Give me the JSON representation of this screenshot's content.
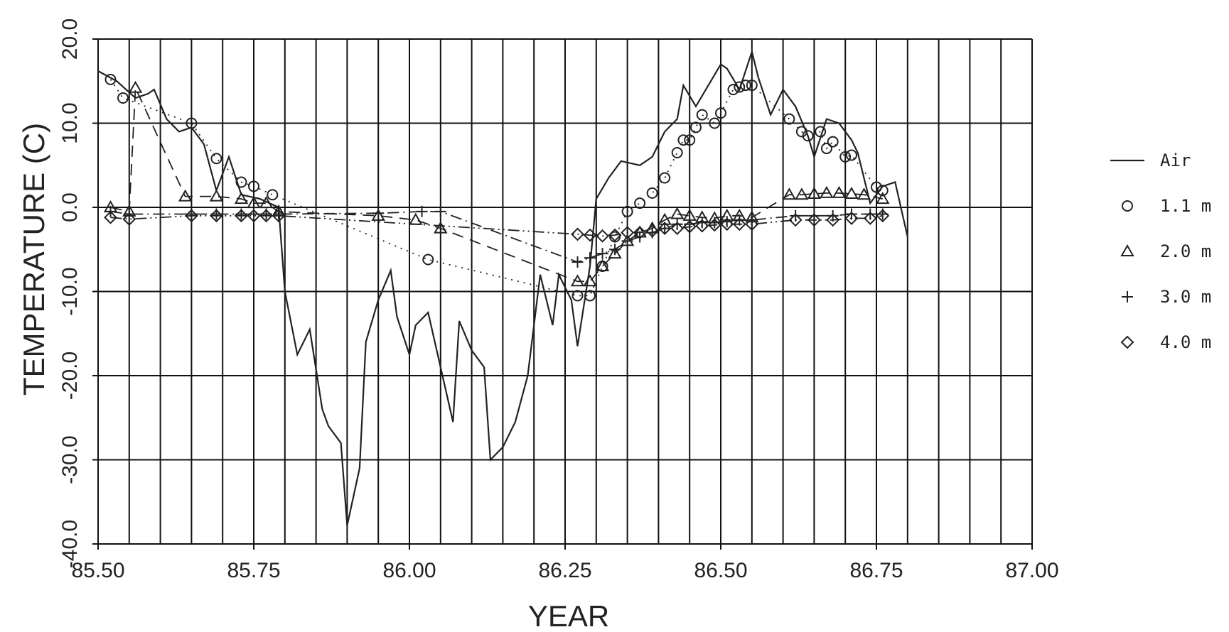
{
  "chart_data": {
    "type": "line",
    "xlabel": "YEAR",
    "ylabel": "TEMPERATURE (C)",
    "xlim": [
      85.5,
      87.0
    ],
    "ylim": [
      -40.0,
      20.0
    ],
    "x_ticks": [
      "85.50",
      "85.75",
      "86.00",
      "86.25",
      "86.50",
      "86.75",
      "87.00"
    ],
    "y_ticks": [
      "-40.0",
      "-30.0",
      "-20.0",
      "-10.0",
      "0.0",
      "10.0",
      "20.0"
    ],
    "grid": true,
    "legend_position": "right",
    "series": [
      {
        "name": "Air",
        "marker": "none",
        "line": "solid",
        "points": [
          [
            85.5,
            16.2
          ],
          [
            85.53,
            15.0
          ],
          [
            85.56,
            13.0
          ],
          [
            85.58,
            13.5
          ],
          [
            85.59,
            14.0
          ],
          [
            85.61,
            10.5
          ],
          [
            85.63,
            9.0
          ],
          [
            85.65,
            9.5
          ],
          [
            85.67,
            7.5
          ],
          [
            85.69,
            2.0
          ],
          [
            85.71,
            6.0
          ],
          [
            85.73,
            1.5
          ],
          [
            85.76,
            1.0
          ],
          [
            85.79,
            0.0
          ],
          [
            85.8,
            -10.0
          ],
          [
            85.82,
            -17.5
          ],
          [
            85.84,
            -14.5
          ],
          [
            85.86,
            -24.0
          ],
          [
            85.87,
            -26.0
          ],
          [
            85.89,
            -28.0
          ],
          [
            85.9,
            -37.8
          ],
          [
            85.92,
            -31.0
          ],
          [
            85.93,
            -16.0
          ],
          [
            85.95,
            -11.0
          ],
          [
            85.97,
            -7.5
          ],
          [
            85.98,
            -13.0
          ],
          [
            86.0,
            -17.5
          ],
          [
            86.01,
            -14.0
          ],
          [
            86.03,
            -12.5
          ],
          [
            86.05,
            -19.0
          ],
          [
            86.07,
            -25.5
          ],
          [
            86.08,
            -13.5
          ],
          [
            86.1,
            -17.0
          ],
          [
            86.12,
            -19.0
          ],
          [
            86.13,
            -30.0
          ],
          [
            86.15,
            -28.5
          ],
          [
            86.17,
            -25.5
          ],
          [
            86.19,
            -20.0
          ],
          [
            86.21,
            -8.0
          ],
          [
            86.23,
            -14.0
          ],
          [
            86.24,
            -8.0
          ],
          [
            86.26,
            -11.0
          ],
          [
            86.27,
            -16.5
          ],
          [
            86.29,
            -7.0
          ],
          [
            86.3,
            1.0
          ],
          [
            86.32,
            3.5
          ],
          [
            86.34,
            5.5
          ],
          [
            86.37,
            5.0
          ],
          [
            86.39,
            6.0
          ],
          [
            86.41,
            9.0
          ],
          [
            86.43,
            10.5
          ],
          [
            86.44,
            14.5
          ],
          [
            86.46,
            12.0
          ],
          [
            86.48,
            14.5
          ],
          [
            86.5,
            17.0
          ],
          [
            86.51,
            16.5
          ],
          [
            86.53,
            14.0
          ],
          [
            86.55,
            18.5
          ],
          [
            86.56,
            15.5
          ],
          [
            86.58,
            11.0
          ],
          [
            86.6,
            14.0
          ],
          [
            86.62,
            12.0
          ],
          [
            86.64,
            8.5
          ],
          [
            86.65,
            6.0
          ],
          [
            86.67,
            10.5
          ],
          [
            86.69,
            10.0
          ],
          [
            86.71,
            8.0
          ],
          [
            86.72,
            6.5
          ],
          [
            86.74,
            0.5
          ],
          [
            86.76,
            2.5
          ],
          [
            86.78,
            3.0
          ],
          [
            86.8,
            -3.5
          ]
        ]
      },
      {
        "name": "1.1 m",
        "marker": "circle",
        "line": "dotted",
        "points": [
          [
            85.52,
            15.2
          ],
          [
            85.54,
            13.0
          ],
          [
            85.65,
            10.0
          ],
          [
            85.69,
            5.8
          ],
          [
            85.73,
            3.0
          ],
          [
            85.75,
            2.5
          ],
          [
            85.78,
            1.5
          ],
          [
            86.03,
            -6.2
          ],
          [
            86.27,
            -10.5
          ],
          [
            86.29,
            -10.5
          ],
          [
            86.31,
            -7.0
          ],
          [
            86.33,
            -3.5
          ],
          [
            86.35,
            -0.5
          ],
          [
            86.37,
            0.5
          ],
          [
            86.39,
            1.7
          ],
          [
            86.41,
            3.5
          ],
          [
            86.43,
            6.5
          ],
          [
            86.44,
            8.0
          ],
          [
            86.45,
            8.0
          ],
          [
            86.46,
            9.5
          ],
          [
            86.47,
            11.0
          ],
          [
            86.49,
            10.0
          ],
          [
            86.5,
            11.2
          ],
          [
            86.52,
            14.0
          ],
          [
            86.53,
            14.3
          ],
          [
            86.54,
            14.5
          ],
          [
            86.55,
            14.5
          ],
          [
            86.61,
            10.5
          ],
          [
            86.63,
            9.0
          ],
          [
            86.64,
            8.5
          ],
          [
            86.66,
            9.0
          ],
          [
            86.67,
            7.0
          ],
          [
            86.68,
            7.8
          ],
          [
            86.7,
            6.0
          ],
          [
            86.71,
            6.2
          ],
          [
            86.75,
            2.4
          ],
          [
            86.76,
            2.0
          ]
        ]
      },
      {
        "name": "2.0 m",
        "marker": "triangle",
        "line": "dashed",
        "points": [
          [
            85.52,
            0.0
          ],
          [
            85.55,
            -0.5
          ],
          [
            85.56,
            14.2
          ],
          [
            85.64,
            1.3
          ],
          [
            85.69,
            1.3
          ],
          [
            85.73,
            1.0
          ],
          [
            85.75,
            0.5
          ],
          [
            85.77,
            0.5
          ],
          [
            85.79,
            -0.5
          ],
          [
            85.95,
            -1.0
          ],
          [
            86.01,
            -1.5
          ],
          [
            86.05,
            -2.5
          ],
          [
            86.27,
            -8.8
          ],
          [
            86.29,
            -8.8
          ],
          [
            86.31,
            -7.0
          ],
          [
            86.33,
            -5.5
          ],
          [
            86.35,
            -4.0
          ],
          [
            86.37,
            -3.0
          ],
          [
            86.39,
            -2.5
          ],
          [
            86.41,
            -1.5
          ],
          [
            86.43,
            -0.8
          ],
          [
            86.45,
            -1.0
          ],
          [
            86.47,
            -1.2
          ],
          [
            86.49,
            -1.3
          ],
          [
            86.51,
            -1.0
          ],
          [
            86.53,
            -1.0
          ],
          [
            86.55,
            -1.2
          ],
          [
            86.61,
            1.5
          ],
          [
            86.63,
            1.5
          ],
          [
            86.65,
            1.6
          ],
          [
            86.67,
            1.7
          ],
          [
            86.69,
            1.7
          ],
          [
            86.71,
            1.6
          ],
          [
            86.73,
            1.5
          ],
          [
            86.76,
            1.0
          ]
        ]
      },
      {
        "name": "3.0 m",
        "marker": "plus",
        "line": "dash-dot",
        "points": [
          [
            85.52,
            -0.5
          ],
          [
            85.55,
            -0.8
          ],
          [
            85.65,
            -0.8
          ],
          [
            85.69,
            -0.8
          ],
          [
            85.73,
            -0.8
          ],
          [
            85.75,
            -0.8
          ],
          [
            85.77,
            -0.8
          ],
          [
            85.79,
            -0.8
          ],
          [
            85.95,
            -0.7
          ],
          [
            86.02,
            -0.5
          ],
          [
            86.05,
            -0.5
          ],
          [
            86.27,
            -6.5
          ],
          [
            86.29,
            -6.0
          ],
          [
            86.31,
            -5.5
          ],
          [
            86.33,
            -5.0
          ],
          [
            86.35,
            -4.0
          ],
          [
            86.37,
            -3.5
          ],
          [
            86.39,
            -3.0
          ],
          [
            86.41,
            -2.5
          ],
          [
            86.43,
            -2.0
          ],
          [
            86.45,
            -2.0
          ],
          [
            86.47,
            -1.8
          ],
          [
            86.49,
            -1.8
          ],
          [
            86.51,
            -1.7
          ],
          [
            86.53,
            -1.5
          ],
          [
            86.55,
            -1.5
          ],
          [
            86.62,
            -1.0
          ],
          [
            86.65,
            -1.0
          ],
          [
            86.68,
            -1.0
          ],
          [
            86.71,
            -0.8
          ],
          [
            86.74,
            -0.8
          ],
          [
            86.76,
            -0.8
          ]
        ]
      },
      {
        "name": "4.0 m",
        "marker": "diamond",
        "line": "dash-dot-dot",
        "points": [
          [
            85.52,
            -1.2
          ],
          [
            85.55,
            -1.4
          ],
          [
            85.65,
            -1.0
          ],
          [
            85.69,
            -1.0
          ],
          [
            85.73,
            -1.0
          ],
          [
            85.75,
            -1.0
          ],
          [
            85.77,
            -1.0
          ],
          [
            85.79,
            -1.0
          ],
          [
            86.27,
            -3.2
          ],
          [
            86.29,
            -3.3
          ],
          [
            86.31,
            -3.4
          ],
          [
            86.33,
            -3.3
          ],
          [
            86.35,
            -3.0
          ],
          [
            86.37,
            -3.0
          ],
          [
            86.39,
            -2.8
          ],
          [
            86.41,
            -2.5
          ],
          [
            86.43,
            -2.5
          ],
          [
            86.45,
            -2.3
          ],
          [
            86.47,
            -2.2
          ],
          [
            86.49,
            -2.1
          ],
          [
            86.51,
            -2.0
          ],
          [
            86.53,
            -2.0
          ],
          [
            86.55,
            -2.0
          ],
          [
            86.62,
            -1.5
          ],
          [
            86.65,
            -1.5
          ],
          [
            86.68,
            -1.5
          ],
          [
            86.71,
            -1.3
          ],
          [
            86.74,
            -1.3
          ],
          [
            86.76,
            -1.0
          ]
        ]
      }
    ]
  }
}
